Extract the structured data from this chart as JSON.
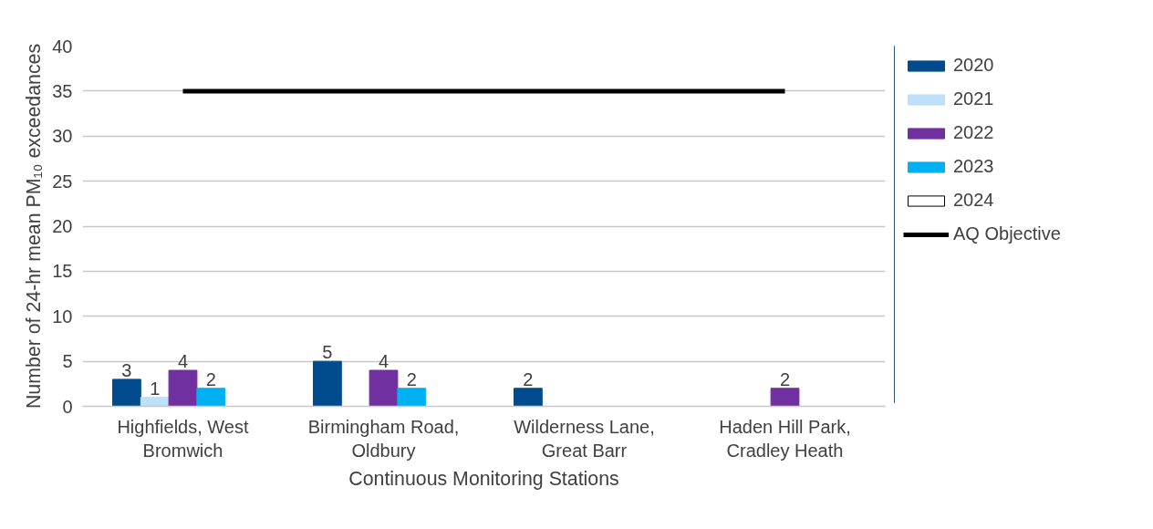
{
  "chart_data": {
    "type": "bar",
    "xlabel": "Continuous Monitoring Stations",
    "ylabel": "Number of 24-hr mean PM₁₀ exceedances",
    "categories": [
      "Highfields, West Bromwich",
      "Birmingham Road, Oldbury",
      "Wilderness Lane, Great Barr",
      "Haden Hill Park, Cradley Heath"
    ],
    "series": [
      {
        "name": "2020",
        "color": "#004b8d",
        "values": [
          3,
          5,
          2,
          null
        ],
        "value_labels": [
          "3",
          "5",
          "2",
          null
        ]
      },
      {
        "name": "2021",
        "color": "#bde0fb",
        "values": [
          1,
          null,
          null,
          null
        ],
        "value_labels": [
          "1",
          null,
          null,
          null
        ]
      },
      {
        "name": "2022",
        "color": "#7030a0",
        "values": [
          4,
          4,
          null,
          2
        ],
        "value_labels": [
          "4",
          "4",
          null,
          "2"
        ]
      },
      {
        "name": "2023",
        "color": "#00b0f0",
        "values": [
          2,
          2,
          null,
          null
        ],
        "value_labels": [
          "2",
          "2",
          null,
          null
        ]
      },
      {
        "name": "2024",
        "color": "#ffffff",
        "values": [
          null,
          null,
          null,
          null
        ]
      },
      {
        "name": "AQ Objective",
        "type": "line",
        "color": "#000000",
        "values": [
          35,
          35,
          35,
          35
        ]
      }
    ],
    "ylim": [
      0,
      40
    ],
    "yticks": [
      0,
      5,
      10,
      15,
      20,
      25,
      30,
      35,
      40
    ],
    "grid": "y",
    "legend": "right"
  }
}
